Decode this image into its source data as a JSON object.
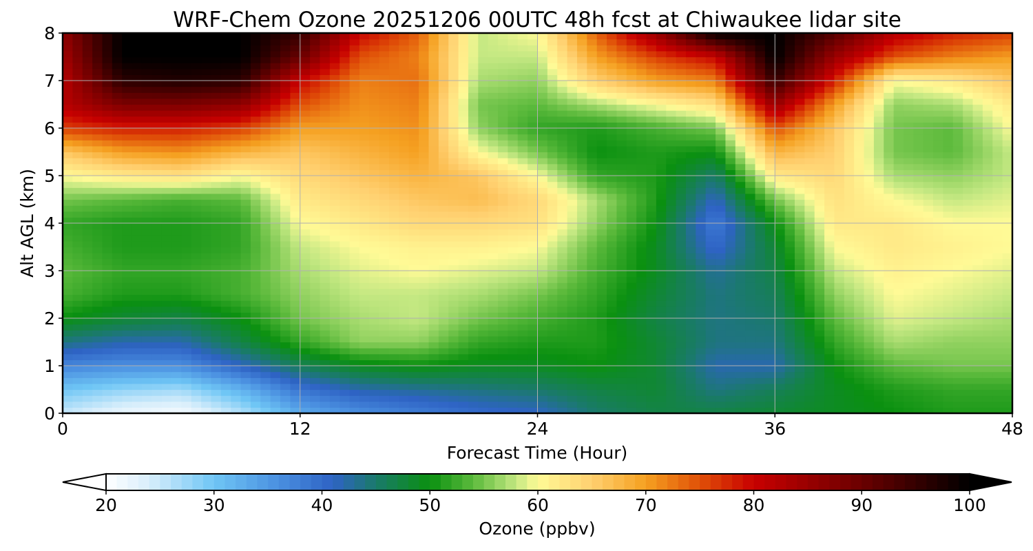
{
  "chart_data": {
    "type": "heatmap",
    "title": "WRF-Chem Ozone  20251206 00UTC 48h fcst at Chiwaukee lidar site",
    "xlabel": "Forecast Time (Hour)",
    "ylabel": "Alt AGL (km)",
    "xlim": [
      0,
      48
    ],
    "ylim": [
      0,
      8
    ],
    "xticks": [
      0,
      12,
      24,
      36,
      48
    ],
    "yticks": [
      0,
      1,
      2,
      3,
      4,
      5,
      6,
      7,
      8
    ],
    "grid": true,
    "colorbar": {
      "label": "Ozone  (ppbv)",
      "range": [
        20,
        100
      ],
      "ticks": [
        20,
        30,
        40,
        50,
        60,
        70,
        80,
        90,
        100
      ],
      "extend": "both",
      "orientation": "horizontal",
      "stops": [
        {
          "value": 20,
          "color": "#ffffff"
        },
        {
          "value": 24,
          "color": "#d8eefb"
        },
        {
          "value": 30,
          "color": "#6fc6f5"
        },
        {
          "value": 36,
          "color": "#4a8fe0"
        },
        {
          "value": 41,
          "color": "#2e63c4"
        },
        {
          "value": 45,
          "color": "#1a7a6a"
        },
        {
          "value": 50,
          "color": "#0a9010"
        },
        {
          "value": 54,
          "color": "#5cba3c"
        },
        {
          "value": 58,
          "color": "#c4e882"
        },
        {
          "value": 60,
          "color": "#fffa96"
        },
        {
          "value": 65,
          "color": "#ffd070"
        },
        {
          "value": 70,
          "color": "#f5a020"
        },
        {
          "value": 75,
          "color": "#e05008"
        },
        {
          "value": 80,
          "color": "#c80000"
        },
        {
          "value": 90,
          "color": "#6a0000"
        },
        {
          "value": 100,
          "color": "#000000"
        }
      ]
    },
    "x": [
      0,
      3,
      6,
      9,
      12,
      15,
      18,
      21,
      24,
      27,
      30,
      33,
      36,
      39,
      42,
      45,
      48
    ],
    "y": [
      0,
      0.5,
      1,
      1.5,
      2,
      2.5,
      3,
      3.5,
      4,
      4.5,
      5,
      5.5,
      6,
      6.5,
      7,
      7.5,
      8
    ],
    "z": [
      [
        25,
        22,
        21,
        26,
        33,
        36,
        38,
        40,
        41,
        45,
        47,
        47,
        48,
        49,
        50,
        51,
        51
      ],
      [
        30,
        28,
        27,
        32,
        39,
        42,
        43,
        44,
        45,
        47,
        48,
        44,
        46,
        49,
        51,
        52,
        52
      ],
      [
        37,
        36,
        36,
        41,
        46,
        49,
        50,
        49,
        49,
        50,
        48,
        42,
        42,
        50,
        54,
        55,
        55
      ],
      [
        44,
        42,
        42,
        47,
        52,
        56,
        56,
        52,
        51,
        51,
        48,
        44,
        44,
        52,
        57,
        56,
        56
      ],
      [
        50,
        48,
        47,
        50,
        55,
        57,
        58,
        55,
        53,
        51,
        47,
        44,
        45,
        54,
        59,
        58,
        57
      ],
      [
        53,
        51,
        51,
        53,
        56,
        58,
        58,
        57,
        55,
        52,
        48,
        44,
        46,
        56,
        60,
        59,
        58
      ],
      [
        54,
        52,
        52,
        53,
        57,
        59,
        60,
        59,
        58,
        53,
        49,
        43,
        47,
        58,
        61,
        60,
        59
      ],
      [
        53,
        51,
        51,
        52,
        58,
        60,
        61,
        61,
        60,
        54,
        49,
        40,
        48,
        60,
        62,
        61,
        60
      ],
      [
        52,
        51,
        51,
        52,
        60,
        62,
        64,
        64,
        63,
        56,
        50,
        38,
        50,
        62,
        62,
        60,
        60
      ],
      [
        55,
        54,
        53,
        54,
        62,
        64,
        66,
        67,
        64,
        57,
        51,
        41,
        55,
        63,
        60,
        58,
        59
      ],
      [
        60,
        62,
        63,
        60,
        64,
        66,
        68,
        66,
        60,
        52,
        51,
        45,
        62,
        64,
        57,
        56,
        58
      ],
      [
        66,
        70,
        71,
        68,
        66,
        68,
        70,
        60,
        55,
        50,
        51,
        50,
        68,
        65,
        55,
        54,
        58
      ],
      [
        76,
        78,
        78,
        76,
        70,
        70,
        71,
        56,
        52,
        51,
        53,
        55,
        75,
        66,
        55,
        54,
        60
      ],
      [
        82,
        88,
        88,
        86,
        75,
        71,
        72,
        55,
        54,
        57,
        60,
        63,
        85,
        70,
        56,
        57,
        62
      ],
      [
        82,
        96,
        97,
        96,
        80,
        72,
        73,
        57,
        56,
        65,
        70,
        72,
        95,
        78,
        60,
        62,
        66
      ],
      [
        84,
        100,
        100,
        100,
        90,
        75,
        72,
        58,
        58,
        70,
        76,
        80,
        100,
        85,
        75,
        72,
        70
      ],
      [
        86,
        100,
        100,
        100,
        95,
        80,
        74,
        58,
        60,
        74,
        85,
        100,
        100,
        92,
        82,
        78,
        76
      ]
    ]
  }
}
